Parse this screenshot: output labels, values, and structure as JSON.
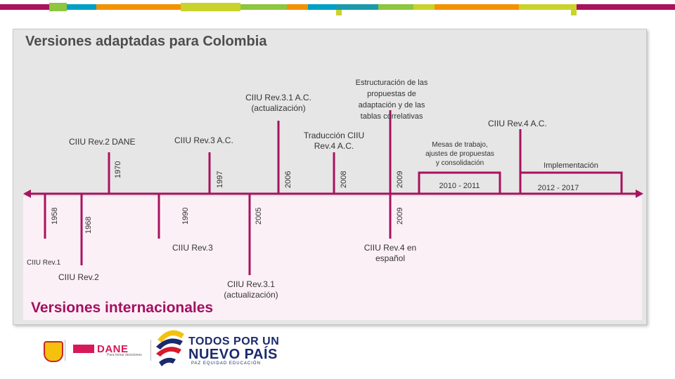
{
  "titles": {
    "national": "Versiones adaptadas para Colombia",
    "international": "Versiones internacionales"
  },
  "colors": {
    "timeline": "#a8125e",
    "international_title": "#a31060",
    "top_segments": [
      "#a8125e",
      "#8dc63f",
      "#00a0c6",
      "#f39200",
      "#c9d32c",
      "#00a0c6",
      "#f39200",
      "#a8125e"
    ]
  },
  "national_events": {
    "e1970": {
      "year": "1970",
      "label": "CIIU Rev.2 DANE"
    },
    "e1997": {
      "year": "1997",
      "label": "CIIU Rev.3 A.C."
    },
    "e2006": {
      "year": "2006",
      "label_l1": "CIIU Rev.3.1 A.C.",
      "label_l2": "(actualización)"
    },
    "e2008": {
      "year": "2008",
      "label_l1": "Traducción CIIU",
      "label_l2": "Rev.4 A.C."
    },
    "e2009": {
      "year": "2009",
      "label_l1": "Estructuración de las",
      "label_l2": "propuestas de",
      "label_l3": "adaptación y de las",
      "label_l4": "tablas correlativas"
    },
    "p2010": {
      "range": "2010 - 2011",
      "label_l1": "Mesas de trabajo,",
      "label_l2": "ajustes de propuestas",
      "label_l3": "y consolidación"
    },
    "rev4ac": {
      "label": "CIIU Rev.4 A.C."
    },
    "p2012": {
      "range": "2012 - 2017",
      "label": "Implementación"
    }
  },
  "international_events": {
    "e1958": {
      "year": "1958",
      "label": "CIIU Rev.1"
    },
    "e1968": {
      "year": "1968",
      "label": "CIIU Rev.2"
    },
    "e1990": {
      "year": "1990",
      "label": "CIIU Rev.3"
    },
    "e2005": {
      "year": "2005",
      "label_l1": "CIIU Rev.3.1",
      "label_l2": "(actualización)"
    },
    "e2009": {
      "year": "2009",
      "label_l1": "CIIU Rev.4 en",
      "label_l2": "español"
    }
  },
  "logos": {
    "dane": "DANE",
    "dane_sub": "Para tomar decisiones",
    "todos_l1": "TODOS POR UN",
    "todos_l2": "NUEVO PAÍS",
    "todos_l3": "PAZ  EQUIDAD  EDUCACIÓN"
  }
}
